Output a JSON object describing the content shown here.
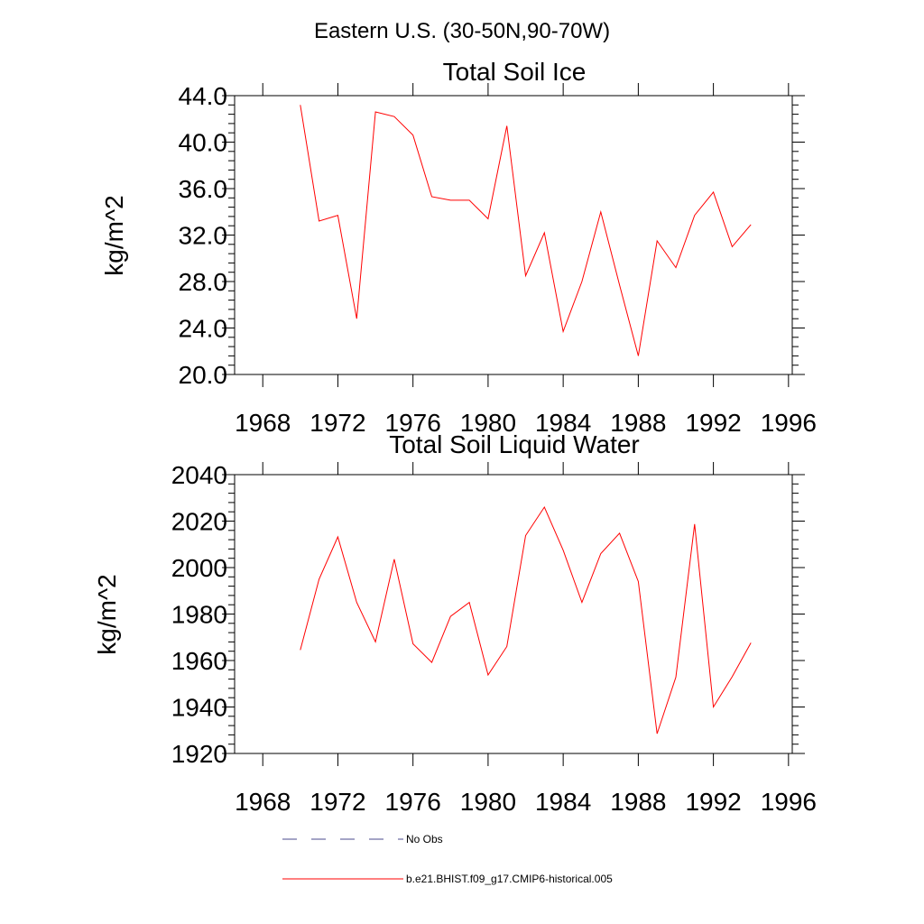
{
  "suptitle": "Eastern U.S. (30-50N,90-70W)",
  "colors": {
    "model": "#ff0000",
    "obs": "#4a4a8c",
    "axis": "#000000"
  },
  "chart_data": [
    {
      "type": "line",
      "title": "Total Soil Ice",
      "xlabel": "",
      "ylabel": "kg/m^2",
      "xlim": [
        1966.5,
        1996.2
      ],
      "ylim": [
        20,
        44
      ],
      "x_ticks": [
        1968,
        1972,
        1976,
        1980,
        1984,
        1988,
        1992,
        1996
      ],
      "x_tick_labels": [
        "1968",
        "1972",
        "1976",
        "1980",
        "1984",
        "1988",
        "1992",
        "1996"
      ],
      "y_ticks": [
        20,
        24,
        28,
        32,
        36,
        40,
        44
      ],
      "y_tick_labels": [
        "20.0",
        "24.0",
        "28.0",
        "32.0",
        "36.0",
        "40.0",
        "44.0"
      ],
      "grid": false,
      "x": [
        1970,
        1971,
        1972,
        1973,
        1974,
        1975,
        1976,
        1977,
        1978,
        1979,
        1980,
        1981,
        1982,
        1983,
        1984,
        1985,
        1986,
        1987,
        1988,
        1989,
        1990,
        1991,
        1992,
        1993,
        1994
      ],
      "series": [
        {
          "name": "b.e21.BHIST.f09_g17.CMIP6-historical.005",
          "values": [
            43.2,
            33.2,
            33.7,
            24.8,
            42.6,
            42.2,
            40.6,
            35.3,
            35.0,
            35.0,
            33.4,
            41.4,
            28.5,
            32.2,
            23.7,
            28.0,
            34.0,
            27.7,
            21.6,
            31.5,
            29.2,
            33.7,
            35.7,
            31.0,
            32.9
          ]
        }
      ]
    },
    {
      "type": "line",
      "title": "Total Soil Liquid Water",
      "xlabel": "",
      "ylabel": "kg/m^2",
      "xlim": [
        1966.5,
        1996.2
      ],
      "ylim": [
        1920,
        2040
      ],
      "x_ticks": [
        1968,
        1972,
        1976,
        1980,
        1984,
        1988,
        1992,
        1996
      ],
      "x_tick_labels": [
        "1968",
        "1972",
        "1976",
        "1980",
        "1984",
        "1988",
        "1992",
        "1996"
      ],
      "y_ticks": [
        1920,
        1940,
        1960,
        1980,
        2000,
        2020,
        2040
      ],
      "y_tick_labels": [
        "1920",
        "1940",
        "1960",
        "1980",
        "2000",
        "2020",
        "2040"
      ],
      "grid": false,
      "x": [
        1970,
        1971,
        1972,
        1973,
        1974,
        1975,
        1976,
        1977,
        1978,
        1979,
        1980,
        1981,
        1982,
        1983,
        1984,
        1985,
        1986,
        1987,
        1988,
        1989,
        1990,
        1991,
        1992,
        1993,
        1994
      ],
      "series": [
        {
          "name": "b.e21.BHIST.f09_g17.CMIP6-historical.005",
          "values": [
            1964.5,
            1995.0,
            2013.2,
            1985.0,
            1968.0,
            2003.6,
            1967.2,
            1959.2,
            1979.0,
            1985.0,
            1953.8,
            1966.0,
            2013.8,
            2026.0,
            2007.5,
            1985.0,
            2006.0,
            2014.8,
            1994.0,
            1928.5,
            1952.8,
            2018.7,
            1940.0,
            1953.0,
            1967.6
          ]
        }
      ]
    }
  ],
  "legend": [
    {
      "label": "No Obs",
      "style": "dashed",
      "color": "#4a4a8c"
    },
    {
      "label": "b.e21.BHIST.f09_g17.CMIP6-historical.005",
      "style": "solid",
      "color": "#ff0000"
    }
  ]
}
